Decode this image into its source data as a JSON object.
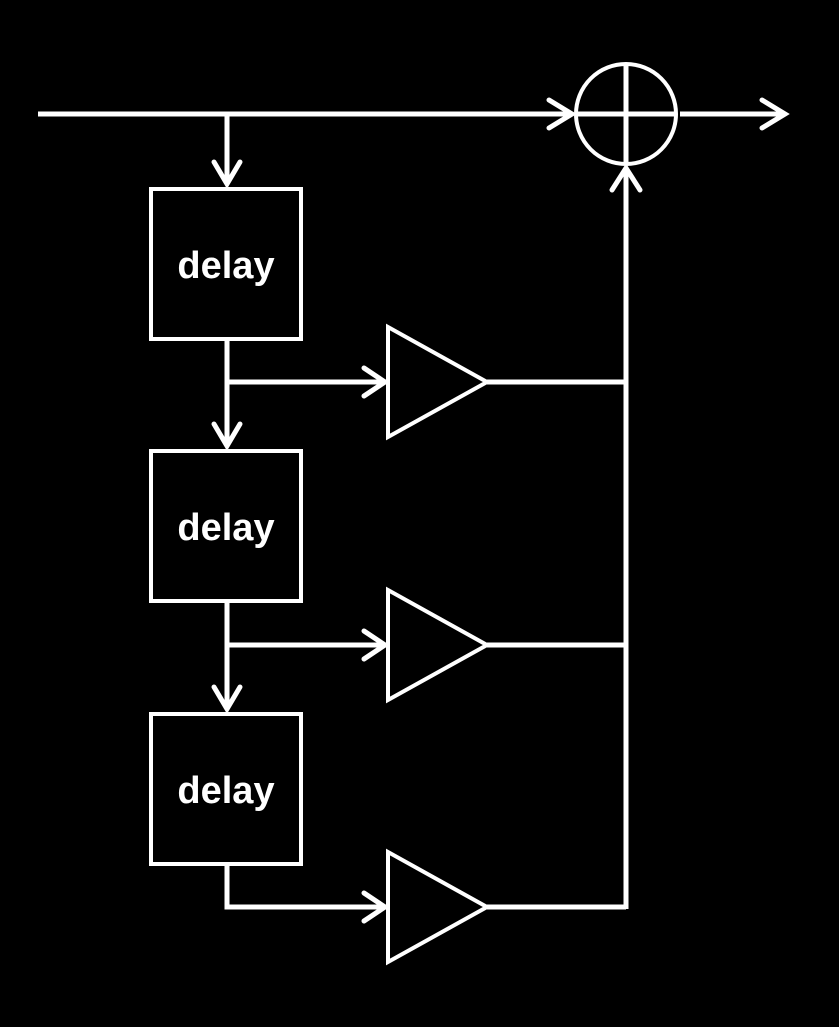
{
  "colors": {
    "background": "#000000",
    "foreground": "#ffffff"
  },
  "blocks": [
    {
      "label": "delay"
    },
    {
      "label": "delay"
    },
    {
      "label": "delay"
    }
  ],
  "gains": [
    {
      "shape": "triangle-amplifier"
    },
    {
      "shape": "triangle-amplifier"
    },
    {
      "shape": "triangle-amplifier"
    }
  ],
  "summer": {
    "shape": "circle-with-cross"
  }
}
